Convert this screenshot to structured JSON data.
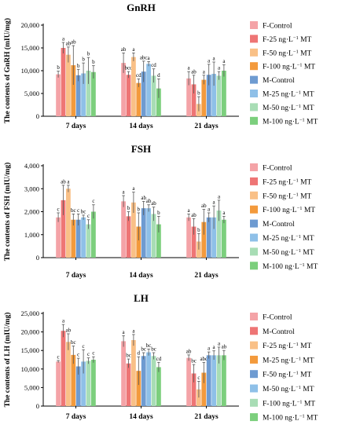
{
  "chart_data": [
    {
      "type": "bar",
      "title": "GnRH",
      "ylabel": "The contents of GnRH (mIU/mg)",
      "ylim": [
        0,
        20000
      ],
      "yticks": [
        "0",
        "5,000",
        "10,000",
        "15,000",
        "20,000"
      ],
      "ytick_values": [
        0,
        5000,
        10000,
        15000,
        20000
      ],
      "categories": [
        "7 days",
        "14 days",
        "21 days"
      ],
      "legend_position": "right",
      "series": [
        {
          "name": "F-Control",
          "color": "#f4a3a7",
          "values": [
            9200,
            11700,
            8300
          ],
          "errors": [
            700,
            2200,
            1500
          ],
          "letters": [
            "b",
            "ab",
            "a"
          ]
        },
        {
          "name": "F-25 ng·L⁻¹ MT",
          "color": "#ee7575",
          "values": [
            15000,
            9100,
            7000
          ],
          "errors": [
            1200,
            700,
            2000
          ],
          "letters": [
            "a",
            "bcd",
            "ab"
          ]
        },
        {
          "name": "F-50 ng·L⁻¹ MT",
          "color": "#f9c087",
          "values": [
            13500,
            13000,
            2700
          ],
          "errors": [
            1700,
            900,
            1600
          ],
          "letters": [
            "ab",
            "a",
            "b"
          ]
        },
        {
          "name": "F-100 ng·L⁻¹ MT",
          "color": "#f39a3c",
          "values": [
            11200,
            7300,
            8000
          ],
          "errors": [
            4300,
            900,
            1000
          ],
          "letters": [
            "ab",
            "cd",
            "a"
          ]
        },
        {
          "name": "M-Control",
          "color": "#6e9bd1",
          "values": [
            9000,
            9800,
            9100
          ],
          "errors": [
            1300,
            2300,
            2300
          ],
          "letters": [
            "b",
            "abc",
            "a"
          ]
        },
        {
          "name": "M-25 ng·L⁻¹ MT",
          "color": "#8fc0e8",
          "values": [
            9400,
            11500,
            9300
          ],
          "errors": [
            2300,
            500,
            2600
          ],
          "letters": [
            "b",
            "a",
            "a"
          ]
        },
        {
          "name": "M-50 ng·L⁻¹ MT",
          "color": "#a8ddb5",
          "values": [
            10000,
            8900,
            8900
          ],
          "errors": [
            2900,
            1500,
            900
          ],
          "letters": [
            "b",
            "cd",
            "a"
          ]
        },
        {
          "name": "M-100 ng·L⁻¹ MT",
          "color": "#7ccf7d",
          "values": [
            9700,
            6100,
            10000
          ],
          "errors": [
            1400,
            2100,
            1300
          ],
          "letters": [
            "b",
            "d",
            "a"
          ]
        }
      ]
    },
    {
      "type": "bar",
      "title": "FSH",
      "ylabel": "The contents of FSH (mIU/mg)",
      "ylim": [
        0,
        4000
      ],
      "yticks": [
        "0",
        "1,000",
        "2,000",
        "3,000",
        "4,000"
      ],
      "ytick_values": [
        0,
        1000,
        2000,
        3000,
        4000
      ],
      "categories": [
        "7 days",
        "14 days",
        "21 days"
      ],
      "legend_position": "right",
      "series": [
        {
          "name": "F-Control",
          "color": "#f4a3a7",
          "values": [
            1750,
            2450,
            1750
          ],
          "errors": [
            200,
            250,
            150
          ],
          "letters": [
            "c",
            "a",
            "a"
          ]
        },
        {
          "name": "F-25 ng·L⁻¹ MT",
          "color": "#ee7575",
          "values": [
            2500,
            1800,
            1350
          ],
          "errors": [
            650,
            200,
            350
          ],
          "letters": [
            "ab",
            "b",
            "ab"
          ]
        },
        {
          "name": "F-50 ng·L⁻¹ MT",
          "color": "#f9c087",
          "values": [
            3000,
            2400,
            700
          ],
          "errors": [
            150,
            450,
            350
          ],
          "letters": [
            "a",
            "a",
            "b"
          ]
        },
        {
          "name": "F-100 ng·L⁻¹ MT",
          "color": "#f39a3c",
          "values": [
            1650,
            1350,
            1550
          ],
          "errors": [
            250,
            600,
            550
          ],
          "letters": [
            "bc",
            "b",
            "ab"
          ]
        },
        {
          "name": "M-Control",
          "color": "#6e9bd1",
          "values": [
            1650,
            2150,
            1750
          ],
          "errors": [
            250,
            300,
            200
          ],
          "letters": [
            "c",
            "ab",
            "a"
          ]
        },
        {
          "name": "M-25 ng·L⁻¹ MT",
          "color": "#8fc0e8",
          "values": [
            1750,
            2150,
            1750
          ],
          "errors": [
            100,
            150,
            500
          ],
          "letters": [
            "bc",
            "ab",
            "a"
          ]
        },
        {
          "name": "M-50 ng·L⁻¹ MT",
          "color": "#a8ddb5",
          "values": [
            1450,
            1900,
            2050
          ],
          "errors": [
            200,
            300,
            450
          ],
          "letters": [
            "c",
            "ab",
            "a"
          ]
        },
        {
          "name": "M-100 ng·L⁻¹ MT",
          "color": "#7ccf7d",
          "values": [
            2000,
            1450,
            1650
          ],
          "errors": [
            300,
            350,
            150
          ],
          "letters": [
            "c",
            "b",
            "a"
          ]
        }
      ]
    },
    {
      "type": "bar",
      "title": "LH",
      "ylabel": "The contents of LH (mIU/mg)",
      "ylim": [
        0,
        25000
      ],
      "yticks": [
        "0",
        "5,000",
        "10,000",
        "15,000",
        "20,000",
        "25,000"
      ],
      "ytick_values": [
        0,
        5000,
        10000,
        15000,
        20000,
        25000
      ],
      "categories": [
        "7 days",
        "14 days",
        "21 days"
      ],
      "legend_position": "right",
      "series": [
        {
          "name": "F-Control",
          "color": "#f4a3a7",
          "values": [
            12000,
            17500,
            13000
          ],
          "errors": [
            300,
            1500,
            800
          ],
          "letters": [
            "c",
            "a",
            "ab"
          ]
        },
        {
          "name": "M-Control",
          "color": "#ee7575",
          "values": [
            20300,
            11500,
            8800
          ],
          "errors": [
            1700,
            1200,
            2400
          ],
          "letters": [
            "a",
            "bc",
            "bc"
          ]
        },
        {
          "name": "F-25 ng·L⁻¹ MT",
          "color": "#f9c087",
          "values": [
            17300,
            17800,
            4500
          ],
          "errors": [
            2200,
            1500,
            2200
          ],
          "letters": [
            "ab",
            "a",
            "c"
          ]
        },
        {
          "name": "M-25 ng·L⁻¹ MT",
          "color": "#f39a3c",
          "values": [
            13800,
            9500,
            9000
          ],
          "errors": [
            2400,
            3800,
            2800
          ],
          "letters": [
            "bc",
            "d",
            "abc"
          ]
        },
        {
          "name": "F-50 ng·L⁻¹ MT",
          "color": "#6e9bd1",
          "values": [
            10700,
            13500,
            13700
          ],
          "errors": [
            2200,
            900,
            900
          ],
          "letters": [
            "c",
            "bc",
            "a"
          ]
        },
        {
          "name": "M-50 ng·L⁻¹ MT",
          "color": "#8fc0e8",
          "values": [
            12000,
            14500,
            13700
          ],
          "errors": [
            3200,
            900,
            1200
          ],
          "letters": [
            "c",
            "bc",
            "a"
          ]
        },
        {
          "name": "F-100 ng·L⁻¹ MT",
          "color": "#a8ddb5",
          "values": [
            12200,
            13500,
            13700
          ],
          "errors": [
            800,
            900,
            2200
          ],
          "letters": [
            "c",
            "bc",
            "a"
          ]
        },
        {
          "name": "M-100 ng·L⁻¹ MT",
          "color": "#7ccf7d",
          "values": [
            12500,
            10500,
            13700
          ],
          "errors": [
            800,
            1300,
            1300
          ],
          "letters": [
            "c",
            "cd",
            "ab"
          ]
        }
      ]
    }
  ]
}
